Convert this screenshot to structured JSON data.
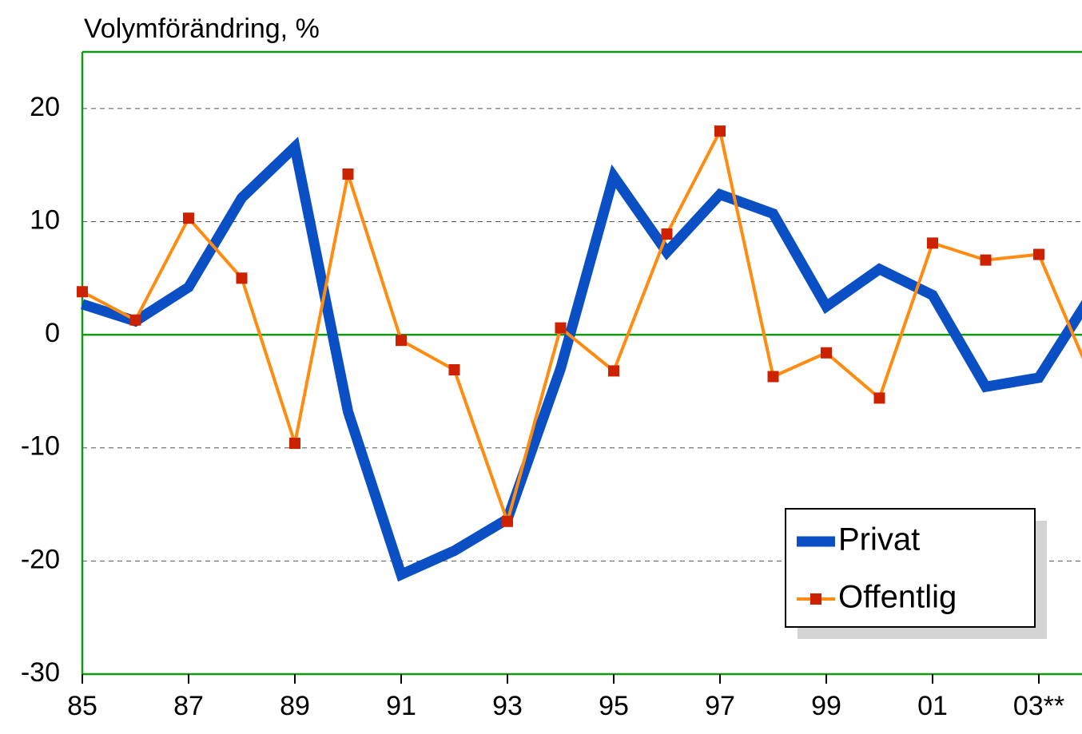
{
  "chart_data": {
    "type": "line",
    "y_axis_label": "Volymförändring, %",
    "categories": [
      "85",
      null,
      "87",
      null,
      "89",
      null,
      "91",
      null,
      "93",
      null,
      "95",
      null,
      "97",
      null,
      "99",
      null,
      "01",
      null,
      "03**",
      null
    ],
    "series": [
      {
        "name": "Privat",
        "color": "#0a4fc4",
        "values": [
          2.7,
          1.2,
          4.2,
          12.1,
          16.6,
          -6.8,
          -21.2,
          -19.1,
          -16.3,
          -3.0,
          14.0,
          7.3,
          12.4,
          10.7,
          2.5,
          5.8,
          3.5,
          -4.6,
          -3.8,
          3.6
        ]
      },
      {
        "name": "Offentlig",
        "color": "#ff8c10",
        "marker_color": "#cc2200",
        "values": [
          3.8,
          1.3,
          10.3,
          5.0,
          -9.6,
          14.2,
          -0.5,
          -3.1,
          -16.5,
          0.6,
          -3.2,
          8.9,
          18.0,
          -3.7,
          -1.6,
          -5.6,
          8.1,
          6.6,
          7.1,
          -3.9
        ]
      }
    ],
    "ylim": [
      -30,
      25
    ],
    "yticks": [
      -30,
      -20,
      -10,
      0,
      10,
      20
    ],
    "grid": true,
    "legend": "lower right"
  }
}
